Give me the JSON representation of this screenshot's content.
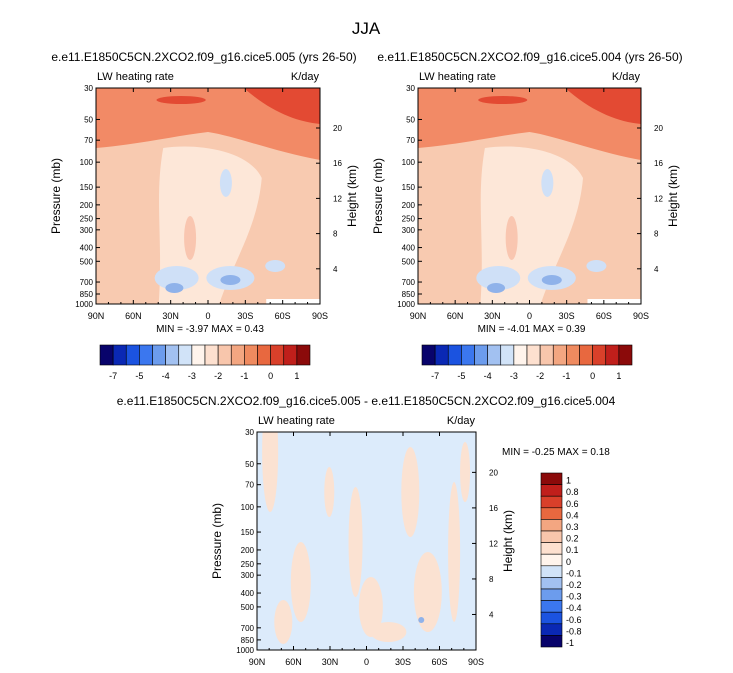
{
  "figure": {
    "title": "JJA"
  },
  "colors": {
    "panel_fill": "#f8cab0",
    "diff_fill": "#dcebfb",
    "diff_warm": "#fbe2d2",
    "frame": "#000000",
    "top_band": "#f28a66",
    "core": "#e34a33",
    "pale": "#fde7d8",
    "blue_light": "#cfe0f7",
    "blue_mid": "#8fb2ea"
  },
  "chart_data": [
    {
      "type": "contour",
      "title": "e.e11.E1850C5CN.2XCO2.f09_g16.cice5.005 (yrs 26-50)",
      "left_label": "LW heating rate",
      "right_label": "K/day",
      "ylabel": "Pressure (mb)",
      "y2label": "Height (km)",
      "x_ticks": [
        "90N",
        "60N",
        "30N",
        "0",
        "30S",
        "60S",
        "90S"
      ],
      "x_range": [
        90,
        -90
      ],
      "y_ticks": [
        "30",
        "50",
        "70",
        "100",
        "150",
        "200",
        "250",
        "300",
        "400",
        "500",
        "700",
        "850",
        "1000"
      ],
      "y_values": [
        30,
        50,
        70,
        100,
        150,
        200,
        250,
        300,
        400,
        500,
        700,
        850,
        1000
      ],
      "y_range": [
        30,
        1000
      ],
      "height_ticks": [
        "20",
        "16",
        "12",
        "8",
        "4"
      ],
      "height_values": [
        20,
        16,
        12,
        8,
        4
      ],
      "stats_text": "MIN =  -3.97   MAX =   0.43",
      "min": -3.97,
      "max": 0.43
    },
    {
      "type": "contour",
      "title": "e.e11.E1850C5CN.2XCO2.f09_g16.cice5.004 (yrs 26-50)",
      "left_label": "LW heating rate",
      "right_label": "K/day",
      "ylabel": "Pressure (mb)",
      "y2label": "Height (km)",
      "x_ticks": [
        "90N",
        "60N",
        "30N",
        "0",
        "30S",
        "60S",
        "90S"
      ],
      "x_range": [
        90,
        -90
      ],
      "y_ticks": [
        "30",
        "50",
        "70",
        "100",
        "150",
        "200",
        "250",
        "300",
        "400",
        "500",
        "700",
        "850",
        "1000"
      ],
      "y_values": [
        30,
        50,
        70,
        100,
        150,
        200,
        250,
        300,
        400,
        500,
        700,
        850,
        1000
      ],
      "y_range": [
        30,
        1000
      ],
      "height_ticks": [
        "20",
        "16",
        "12",
        "8",
        "4"
      ],
      "height_values": [
        20,
        16,
        12,
        8,
        4
      ],
      "stats_text": "MIN =  -4.01   MAX =   0.39",
      "min": -4.01,
      "max": 0.39
    },
    {
      "type": "contour",
      "title": "e.e11.E1850C5CN.2XCO2.f09_g16.cice5.005 - e.e11.E1850C5CN.2XCO2.f09_g16.cice5.004",
      "left_label": "LW heating rate",
      "right_label": "K/day",
      "ylabel": "Pressure (mb)",
      "y2label": "Height (km)",
      "x_ticks": [
        "90N",
        "60N",
        "30N",
        "0",
        "30S",
        "60S",
        "90S"
      ],
      "x_range": [
        90,
        -90
      ],
      "y_ticks": [
        "30",
        "50",
        "70",
        "100",
        "150",
        "200",
        "250",
        "300",
        "400",
        "500",
        "700",
        "850",
        "1000"
      ],
      "y_values": [
        30,
        50,
        70,
        100,
        150,
        200,
        250,
        300,
        400,
        500,
        700,
        850,
        1000
      ],
      "y_range": [
        30,
        1000
      ],
      "height_ticks": [
        "20",
        "16",
        "12",
        "8",
        "4"
      ],
      "height_values": [
        20,
        16,
        12,
        8,
        4
      ],
      "stats_text": "MIN =  -0.25   MAX =   0.18",
      "min": -0.25,
      "max": 0.18
    }
  ],
  "colorbars": {
    "main": {
      "orientation": "horizontal",
      "labels": [
        "-7",
        "-5",
        "-4",
        "-3",
        "-2",
        "-1",
        "0",
        "1"
      ],
      "colors": [
        "#08036b",
        "#0a28b4",
        "#1b53e0",
        "#3b77ef",
        "#6c9ced",
        "#a2c1f1",
        "#d1e3f8",
        "#fff4ec",
        "#fde0cf",
        "#f8c6ac",
        "#f3a681",
        "#ef8a5f",
        "#e8683f",
        "#d9402a",
        "#c01f1b",
        "#8b0a0a"
      ]
    },
    "diff": {
      "orientation": "vertical",
      "labels": [
        "1",
        "0.8",
        "0.6",
        "0.4",
        "0.3",
        "0.2",
        "0.1",
        "0",
        "-0.1",
        "-0.2",
        "-0.3",
        "-0.4",
        "-0.6",
        "-0.8",
        "-1"
      ],
      "colors": [
        "#8b0a0a",
        "#c01f1b",
        "#d9402a",
        "#e8683f",
        "#f3a681",
        "#f8c6ac",
        "#fde0cf",
        "#fff4ec",
        "#d1e3f8",
        "#a2c1f1",
        "#6c9ced",
        "#3b77ef",
        "#1b53e0",
        "#0a28b4",
        "#08036b"
      ]
    }
  }
}
